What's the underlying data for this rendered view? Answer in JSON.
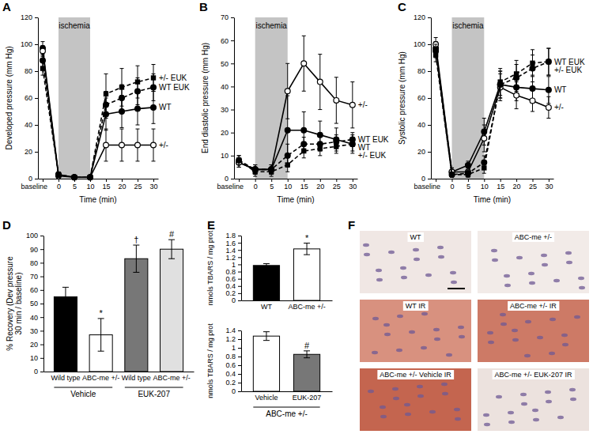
{
  "chart_data": [
    {
      "panel": "A",
      "type": "line",
      "ylabel": "Developed pressure (mm Hg)",
      "xlabel": "Time (min)",
      "categories": [
        "baseline",
        "0",
        "5",
        "10",
        "15",
        "20",
        "25",
        "30"
      ],
      "ylim": [
        0,
        120
      ],
      "yticks": [
        0,
        20,
        40,
        60,
        80,
        100,
        120
      ],
      "annotations": [
        {
          "text": "ischemia",
          "from": "0",
          "to": "10"
        }
      ],
      "series": [
        {
          "name": "WT",
          "color": "#000000",
          "marker": "circle",
          "line_style": "solid",
          "values": [
            97,
            3,
            1,
            1,
            48,
            50,
            52,
            53
          ],
          "errors": [
            5,
            2,
            1,
            1,
            12,
            12,
            12,
            12
          ]
        },
        {
          "name": "+/-",
          "color": "#000000",
          "marker": "open_circle",
          "line_style": "solid",
          "values": [
            95,
            2,
            1,
            1,
            25,
            25,
            25,
            25
          ],
          "errors": [
            4,
            2,
            1,
            1,
            12,
            12,
            12,
            12
          ]
        },
        {
          "name": "WT EUK",
          "color": "#000000",
          "marker": "circle",
          "line_style": "dashed",
          "values": [
            88,
            3,
            1,
            1,
            55,
            60,
            65,
            68
          ],
          "errors": [
            5,
            2,
            1,
            1,
            10,
            10,
            10,
            10
          ]
        },
        {
          "name": "+/- EUK",
          "color": "#000000",
          "marker": "square",
          "line_style": "dashed",
          "values": [
            82,
            3,
            1,
            1,
            63,
            68,
            72,
            75
          ],
          "errors": [
            5,
            2,
            1,
            1,
            15,
            14,
            12,
            10
          ]
        }
      ]
    },
    {
      "panel": "B",
      "type": "line",
      "ylabel": "End diastolic pressure (mm Hg)",
      "xlabel": "Time (min)",
      "categories": [
        "baseline",
        "0",
        "5",
        "10",
        "15",
        "20",
        "25",
        "30"
      ],
      "ylim": [
        0,
        70
      ],
      "yticks": [
        0,
        10,
        20,
        30,
        40,
        50,
        60,
        70
      ],
      "annotations": [
        {
          "text": "ischemia",
          "from": "0",
          "to": "10"
        }
      ],
      "series": [
        {
          "name": "WT",
          "color": "#000000",
          "marker": "circle",
          "line_style": "solid",
          "values": [
            7,
            4,
            4,
            21,
            21,
            19,
            17,
            15
          ],
          "errors": [
            2,
            2,
            2,
            15,
            8,
            6,
            5,
            4
          ]
        },
        {
          "name": "+/-",
          "color": "#000000",
          "marker": "open_circle",
          "line_style": "solid",
          "values": [
            7,
            4,
            4,
            38,
            50,
            42,
            34,
            32
          ],
          "errors": [
            2,
            2,
            2,
            12,
            12,
            12,
            10,
            10
          ]
        },
        {
          "name": "WT EUK",
          "color": "#000000",
          "marker": "circle",
          "line_style": "dashed",
          "values": [
            8,
            4,
            4,
            10,
            15,
            15,
            16,
            17
          ],
          "errors": [
            2,
            2,
            2,
            5,
            3,
            3,
            3,
            3
          ]
        },
        {
          "name": "+/- EUK",
          "color": "#000000",
          "marker": "square",
          "line_style": "dashed",
          "values": [
            8,
            3,
            3,
            6,
            12,
            13,
            14,
            15
          ],
          "errors": [
            2,
            2,
            2,
            3,
            3,
            3,
            3,
            3
          ]
        }
      ]
    },
    {
      "panel": "C",
      "type": "line",
      "ylabel": "Systolic pressure (mm Hg)",
      "xlabel": "Time (min)",
      "categories": [
        "baseline",
        "0",
        "5",
        "10",
        "15",
        "20",
        "25",
        "30"
      ],
      "ylim": [
        0,
        120
      ],
      "yticks": [
        0,
        20,
        40,
        60,
        80,
        100,
        120
      ],
      "annotations": [
        {
          "text": "ischemia",
          "from": "0",
          "to": "10"
        }
      ],
      "series": [
        {
          "name": "WT",
          "color": "#000000",
          "marker": "circle",
          "line_style": "solid",
          "values": [
            97,
            5,
            10,
            35,
            70,
            68,
            67,
            66
          ],
          "errors": [
            5,
            3,
            3,
            10,
            10,
            10,
            10,
            10
          ]
        },
        {
          "name": "+/-",
          "color": "#000000",
          "marker": "open_circle",
          "line_style": "solid",
          "values": [
            100,
            5,
            5,
            30,
            68,
            62,
            58,
            53
          ],
          "errors": [
            5,
            3,
            3,
            10,
            10,
            10,
            8,
            8
          ]
        },
        {
          "name": "WT EUK",
          "color": "#000000",
          "marker": "circle",
          "line_style": "dashed",
          "values": [
            95,
            3,
            4,
            12,
            70,
            75,
            82,
            87
          ],
          "errors": [
            5,
            2,
            2,
            5,
            10,
            10,
            10,
            10
          ]
        },
        {
          "name": "+/- EUK",
          "color": "#000000",
          "marker": "square",
          "line_style": "dashed",
          "values": [
            92,
            3,
            3,
            8,
            72,
            78,
            86,
            87
          ],
          "errors": [
            5,
            2,
            2,
            4,
            10,
            10,
            10,
            10
          ]
        }
      ]
    },
    {
      "panel": "D",
      "type": "bar",
      "ylabel": "% Recovery (Dev pressure 30 min / baseline)",
      "categories": [
        "Wild type",
        "ABC-me +/-",
        "Wild type",
        "ABC-me +/-"
      ],
      "groups": [
        "Vehicle",
        "Vehicle",
        "EUK-207",
        "EUK-207"
      ],
      "values": [
        55,
        27,
        83,
        90
      ],
      "errors": [
        7,
        12,
        10,
        7
      ],
      "colors": [
        "#000000",
        "#ffffff",
        "#777777",
        "#e0e0e0"
      ],
      "significance": [
        null,
        "*",
        "†",
        "#"
      ],
      "ylim": [
        0,
        100
      ],
      "yticks": [
        0,
        10,
        20,
        30,
        40,
        50,
        60,
        70,
        80,
        90,
        100
      ]
    },
    {
      "panel": "E",
      "type": "bar",
      "ylabel": "nmols TBARS / mg prot",
      "categories": [
        "WT",
        "ABC-me +/-"
      ],
      "values": [
        0.97,
        1.43
      ],
      "errors": [
        0.05,
        0.16
      ],
      "colors": [
        "#000000",
        "#ffffff"
      ],
      "significance": [
        null,
        "*"
      ],
      "ylim": [
        0,
        1.8
      ],
      "yticks": [
        0,
        0.2,
        0.4,
        0.6,
        0.8,
        1,
        1.2,
        1.4,
        1.6,
        1.8
      ]
    },
    {
      "type": "bar",
      "ylabel": "nmols TBARS / mg prot",
      "categories": [
        "Vehicle",
        "EUK-207"
      ],
      "groups": [
        "ABC-me +/-",
        "ABC-me +/-"
      ],
      "values": [
        1.27,
        0.85
      ],
      "errors": [
        0.1,
        0.08
      ],
      "colors": [
        "#ffffff",
        "#777777"
      ],
      "significance": [
        null,
        "#"
      ],
      "ylim": [
        0,
        1.4
      ],
      "yticks": [
        0,
        0.2,
        0.4,
        0.6,
        0.8,
        1,
        1.2,
        1.4
      ]
    },
    {
      "panel": "F",
      "type": "image",
      "images": [
        "WT",
        "ABC-me +/-",
        "WT IR",
        "ABC-me +/- IR",
        "ABC-me +/- Vehicle IR",
        "ABC-me +/- EUK-207 IR"
      ]
    }
  ]
}
